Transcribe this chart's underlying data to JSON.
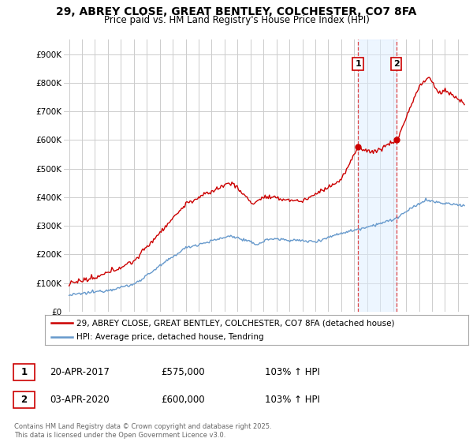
{
  "title": "29, ABREY CLOSE, GREAT BENTLEY, COLCHESTER, CO7 8FA",
  "subtitle": "Price paid vs. HM Land Registry's House Price Index (HPI)",
  "legend_line1": "29, ABREY CLOSE, GREAT BENTLEY, COLCHESTER, CO7 8FA (detached house)",
  "legend_line2": "HPI: Average price, detached house, Tendring",
  "annotation1_label": "1",
  "annotation1_date": "20-APR-2017",
  "annotation1_price": "£575,000",
  "annotation1_hpi": "103% ↑ HPI",
  "annotation2_label": "2",
  "annotation2_date": "03-APR-2020",
  "annotation2_price": "£600,000",
  "annotation2_hpi": "103% ↑ HPI",
  "footer": "Contains HM Land Registry data © Crown copyright and database right 2025.\nThis data is licensed under the Open Government Licence v3.0.",
  "red_color": "#cc0000",
  "blue_color": "#6699cc",
  "blue_fill": "#ddeeff",
  "dashed_red": "#dd4444",
  "grid_color": "#cccccc",
  "background_color": "#ffffff",
  "sale1_year": 2017.29,
  "sale2_year": 2020.25,
  "sale1_price": 575000,
  "sale2_price": 600000
}
